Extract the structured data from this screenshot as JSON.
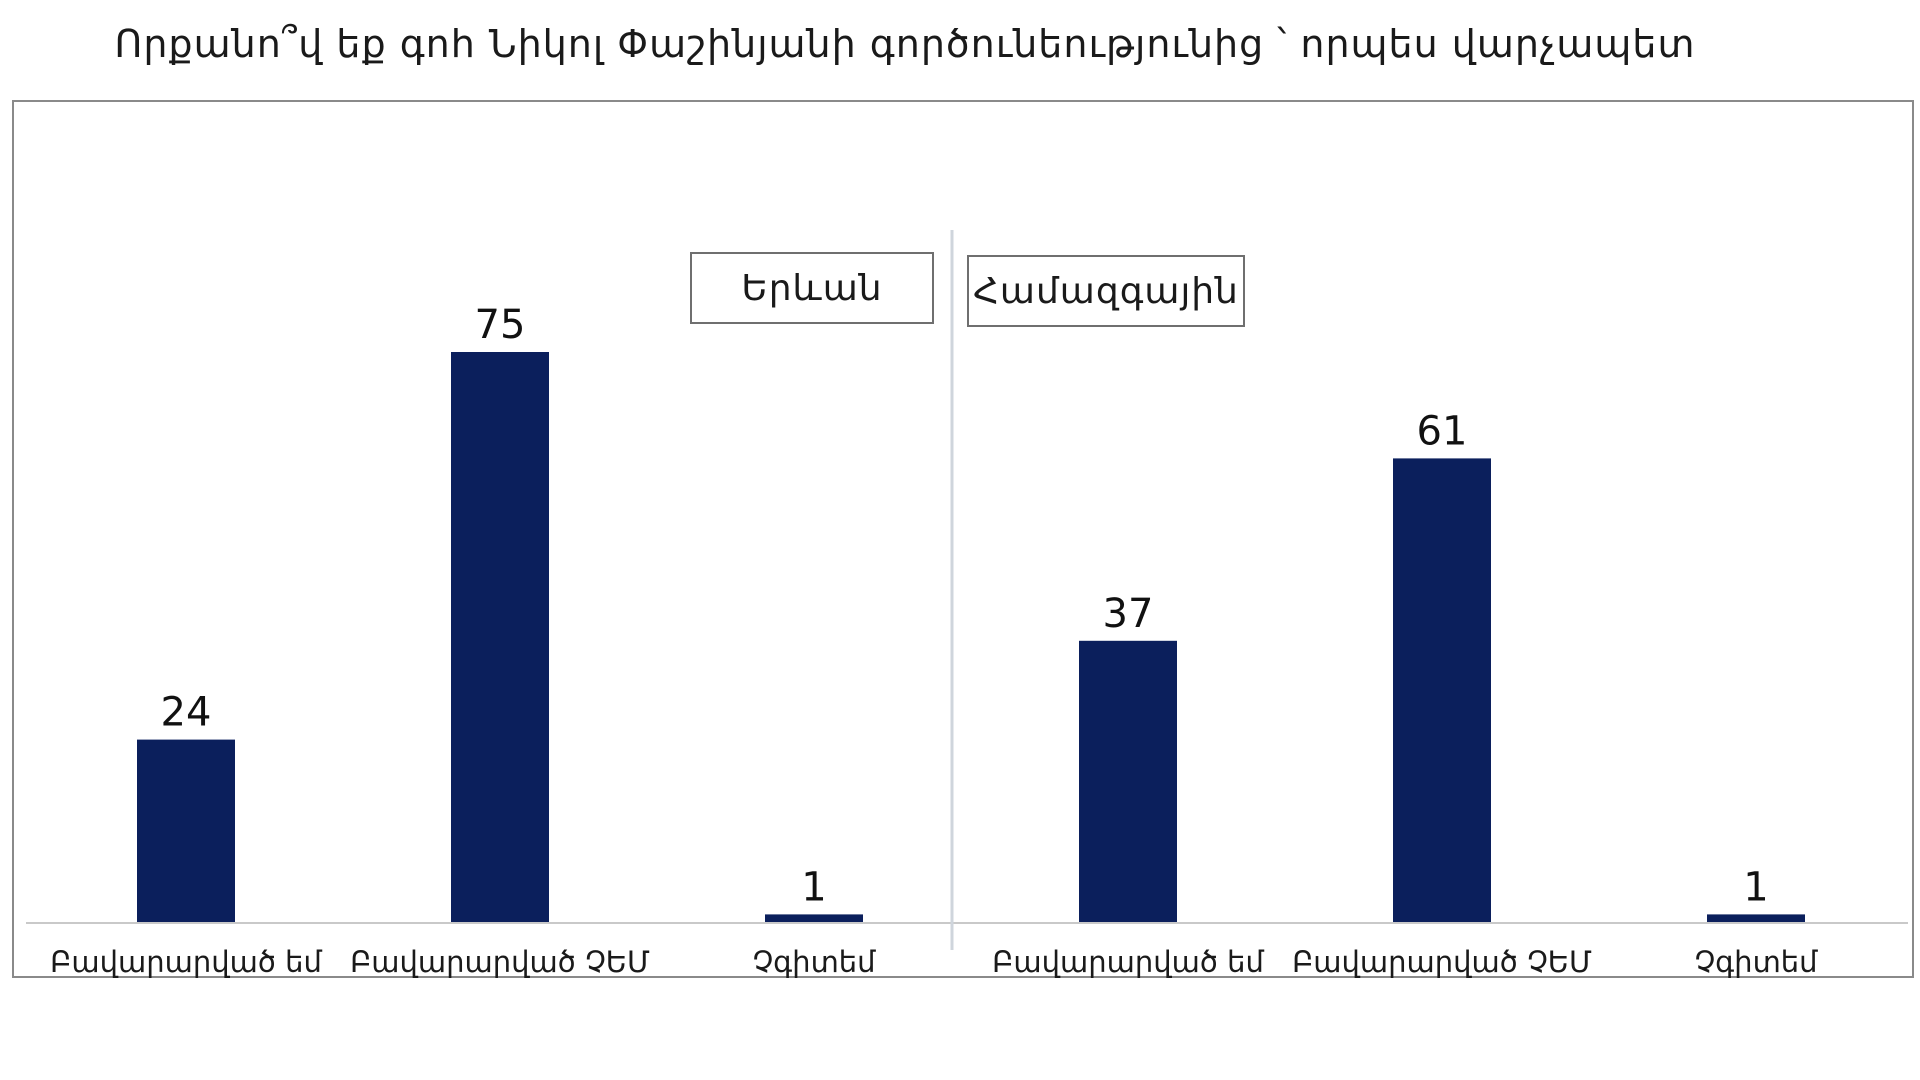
{
  "chart_data": {
    "type": "bar",
    "title": "Որքանո՞վ եք գոհ Նիկոլ Փաշինյանի գործունեությունից ՝ որպես վարչապետ",
    "bar_color": "#0b1f5c",
    "panels": [
      {
        "name": "Երևան",
        "categories": [
          "Բավարարված եմ",
          "Բավարարված ՉԵՄ",
          "Չգիտեմ"
        ],
        "values": [
          24,
          75,
          1
        ]
      },
      {
        "name": "Համազգային",
        "categories": [
          "Բավարարված եմ",
          "Բավարարված ՉԵՄ",
          "Չգիտեմ"
        ],
        "values": [
          37,
          61,
          1
        ]
      }
    ],
    "ylim": [
      0,
      100
    ],
    "grid": false
  }
}
